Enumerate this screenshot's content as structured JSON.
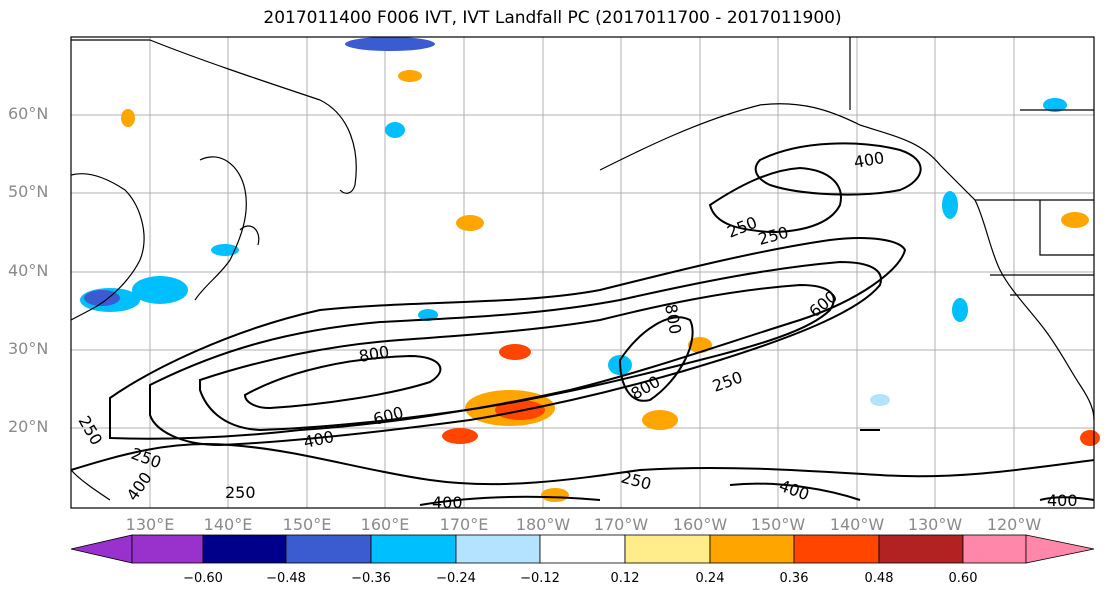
{
  "title": "2017011400 F006 IVT, IVT Landfall PC (2017011700 - 2017011900)",
  "map": {
    "lat_labels": [
      "60°N",
      "50°N",
      "40°N",
      "30°N",
      "20°N"
    ],
    "lon_labels": [
      "130°E",
      "140°E",
      "150°E",
      "160°E",
      "170°E",
      "180°W",
      "170°W",
      "160°W",
      "150°W",
      "140°W",
      "130°W",
      "120°W"
    ],
    "contour_labels": [
      "250",
      "250",
      "250",
      "250",
      "250",
      "250",
      "250",
      "400",
      "400",
      "400",
      "400",
      "400",
      "400",
      "600",
      "600",
      "800",
      "800",
      "800"
    ],
    "colors": {
      "land_outline": "#000000",
      "grid": "#b0b0b0",
      "contour": "#000000",
      "label_gray": "#8a8a8a"
    }
  },
  "colorbar": {
    "ticks": [
      "−0.60",
      "−0.48",
      "−0.36",
      "−0.24",
      "−0.12",
      "0.12",
      "0.24",
      "0.36",
      "0.48",
      "0.60"
    ],
    "colors": [
      "#9932cc",
      "#00008b",
      "#3b5bd0",
      "#00bfff",
      "#b3e3ff",
      "#ffffff",
      "#ffec8b",
      "#ffa500",
      "#ff4500",
      "#b22222",
      "#ff88aa"
    ]
  }
}
